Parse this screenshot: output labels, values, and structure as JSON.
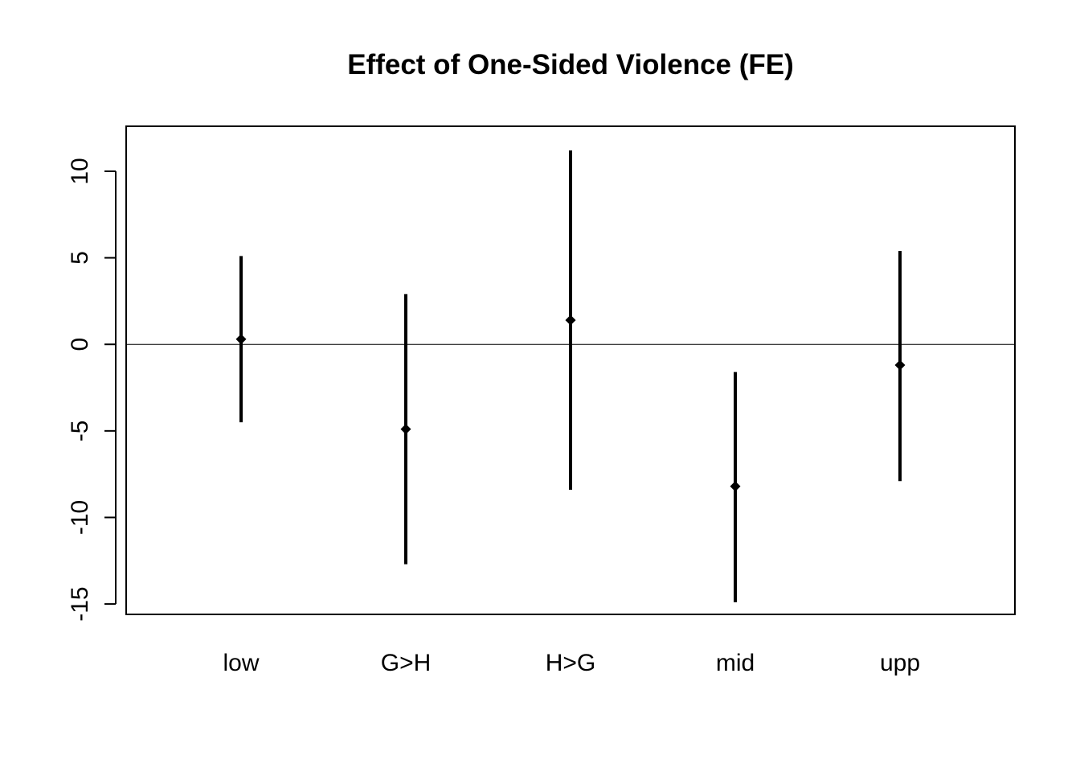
{
  "chart_data": {
    "type": "errorbar",
    "title": "Effect of One-Sided Violence (FE)",
    "xlabel": "",
    "ylabel": "",
    "categories": [
      "low",
      "G>H",
      "H>G",
      "mid",
      "upp"
    ],
    "series": [
      {
        "estimate": [
          0.3,
          -4.9,
          1.4,
          -8.2,
          -1.2
        ],
        "lower": [
          -4.5,
          -12.7,
          -8.4,
          -14.9,
          -7.9
        ],
        "upper": [
          5.1,
          2.9,
          11.2,
          -1.6,
          5.4
        ]
      }
    ],
    "ylim": [
      -15.6,
      12.6
    ],
    "yticks": [
      10,
      5,
      0,
      -5,
      -10,
      -15
    ],
    "ytick_labels": [
      "10",
      "5",
      "0",
      "-5",
      "-10",
      "-15"
    ],
    "reference_line": 0,
    "grid": false,
    "legend": "none"
  }
}
